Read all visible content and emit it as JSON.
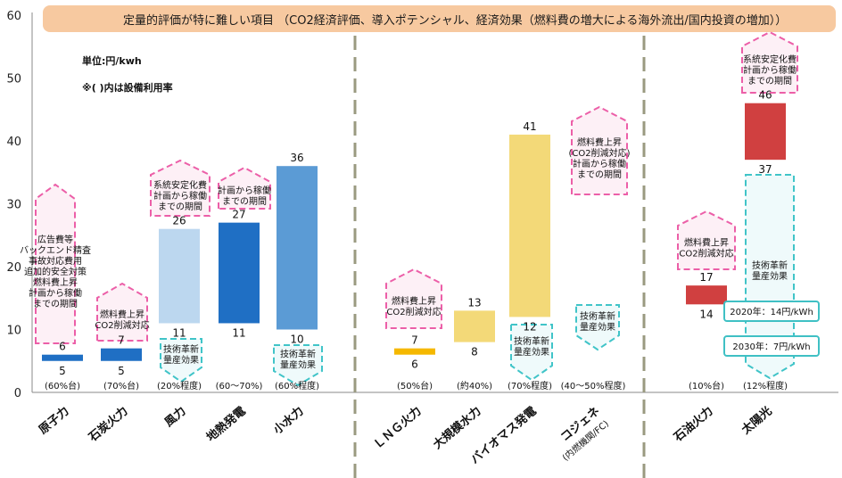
{
  "chart_data": {
    "type": "bar",
    "title": "定量的評価が特に難しい項目 （CO2経済評価、導入ポテンシャル、経済効果（燃料費の増大による海外流出/国内投資の増加））",
    "unit_note": "単位:円/kwh",
    "paren_note": "※( )内は設備利用率",
    "ylim": [
      0,
      60
    ],
    "yticks": [
      "0",
      "10",
      "20",
      "30",
      "40",
      "50",
      "60"
    ],
    "categories": [
      "原子力",
      "石炭火力",
      "風力",
      "地熱発電",
      "小水力",
      "ＬＮＧ火力",
      "大規模水力",
      "バイオマス発電",
      "コジェネ",
      "石油火力",
      "太陽光"
    ],
    "category_subs": [
      "",
      "",
      "",
      "",
      "",
      "",
      "",
      "",
      "(内燃機関/FC)",
      "",
      ""
    ],
    "utilization": [
      "(60%台)",
      "(70%台)",
      "(20%程度)",
      "(60〜70%)",
      "(60%程度)",
      "(50%台)",
      "(約40%)",
      "(70%程度)",
      "(40〜50%程度)",
      "(10%台)",
      "(12%程度)"
    ],
    "low_values": [
      5,
      5,
      11,
      11,
      10,
      6,
      8,
      12,
      null,
      14,
      37
    ],
    "high_values": [
      6,
      7,
      26,
      27,
      36,
      7,
      13,
      41,
      null,
      17,
      46
    ],
    "low_labels": [
      "5",
      "5",
      "11",
      "11",
      "10",
      "6",
      "8",
      "12",
      "",
      "14",
      "37"
    ],
    "high_labels": [
      "6",
      "7",
      "26",
      "27",
      "36",
      "7",
      "13",
      "41",
      "",
      "17",
      "46"
    ],
    "bar_colors": [
      "#1f6fc4",
      "#1f6fc4",
      "#bcd7ef",
      "#1f6fc4",
      "#5b9bd5",
      "#f5b800",
      "#f3d978",
      "#f3d978",
      "",
      "#d04040",
      "#d04040"
    ],
    "annotations": [
      {
        "category": "原子力",
        "kind": "up",
        "lines": [
          "広告費等",
          "バックエンド精査",
          "事故対応費用",
          "追加的安全対策",
          "燃料費上昇",
          "計画から稼働",
          "までの期間"
        ]
      },
      {
        "category": "石炭火力",
        "kind": "up",
        "lines": [
          "燃料費上昇",
          "CO2削減対応"
        ]
      },
      {
        "category": "風力",
        "kind": "up",
        "lines": [
          "系統安定化費",
          "計画から稼働",
          "までの期間"
        ]
      },
      {
        "category": "風力",
        "kind": "down",
        "lines": [
          "技術革新",
          "量産効果"
        ]
      },
      {
        "category": "地熱発電",
        "kind": "up",
        "lines": [
          "計画から稼働",
          "までの期間"
        ]
      },
      {
        "category": "小水力",
        "kind": "down",
        "lines": [
          "技術革新",
          "量産効果"
        ]
      },
      {
        "category": "ＬＮＧ火力",
        "kind": "up",
        "lines": [
          "燃料費上昇",
          "CO2削減対応"
        ]
      },
      {
        "category": "バイオマス発電",
        "kind": "down",
        "lines": [
          "技術革新",
          "量産効果"
        ]
      },
      {
        "category": "コジェネ",
        "kind": "up",
        "lines": [
          "燃料費上昇",
          "(CO2削減対応)",
          "計画から稼働",
          "までの期間"
        ]
      },
      {
        "category": "コジェネ",
        "kind": "down",
        "lines": [
          "技術革新",
          "量産効果"
        ]
      },
      {
        "category": "石油火力",
        "kind": "up",
        "lines": [
          "燃料費上昇",
          "CO2削減対応"
        ]
      },
      {
        "category": "太陽光",
        "kind": "up",
        "lines": [
          "系統安定化費",
          "計画から稼働",
          "までの期間"
        ]
      },
      {
        "category": "太陽光",
        "kind": "down",
        "lines": [
          "技術革新",
          "量産効果"
        ]
      }
    ],
    "callouts": [
      "2020年：14円/kWh",
      "2030年：7円/kWh"
    ],
    "grid": false,
    "legend": "none"
  },
  "colors": {
    "banner_fill": "#f7c9a0",
    "up_arrow": "#ec5fa8",
    "down_arrow": "#40c4c8",
    "divider": "#9a9a80",
    "callout_border": "#3fc0c4"
  }
}
